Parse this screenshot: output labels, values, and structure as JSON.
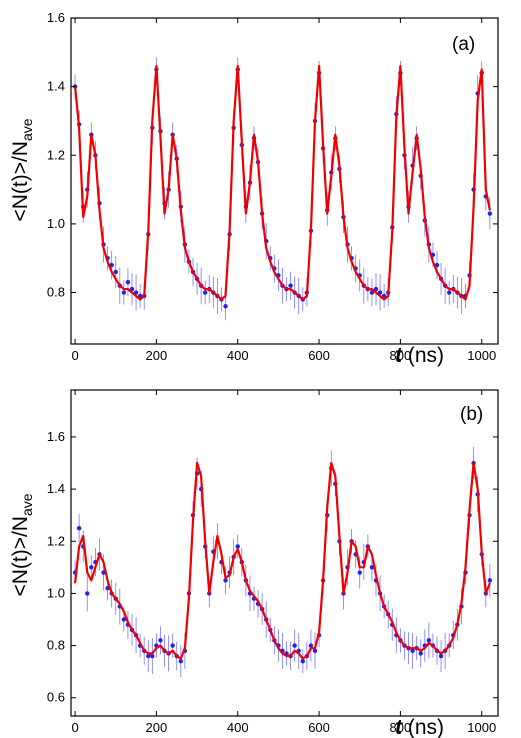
{
  "chart_data": [
    {
      "type": "scatter",
      "panel_label": "(a)",
      "xlabel_var": "t",
      "xlabel_unit": " (ns)",
      "ylabel_main": "<N(t)>/N",
      "ylabel_sub": "ave",
      "xlim": [
        -10,
        1040
      ],
      "ylim": [
        0.65,
        1.6
      ],
      "xticks": [
        0,
        200,
        400,
        600,
        800,
        1000
      ],
      "yticks": [
        0.8,
        1.0,
        1.2,
        1.4,
        1.6
      ],
      "ytick_labels": [
        "0.8",
        "1.0",
        "1.2",
        "1.4",
        "1.6"
      ],
      "series": [
        {
          "kind": "data",
          "color": "#2222ee",
          "x": [
            0,
            10,
            20,
            30,
            40,
            50,
            60,
            70,
            80,
            90,
            100,
            110,
            120,
            130,
            140,
            150,
            160,
            170,
            180,
            190,
            200,
            210,
            220,
            230,
            240,
            250,
            260,
            270,
            280,
            290,
            300,
            310,
            320,
            330,
            340,
            350,
            360,
            370,
            380,
            390,
            400,
            410,
            420,
            430,
            440,
            450,
            460,
            470,
            480,
            490,
            500,
            510,
            520,
            530,
            540,
            550,
            560,
            570,
            580,
            590,
            600,
            610,
            620,
            630,
            640,
            650,
            660,
            670,
            680,
            690,
            700,
            710,
            720,
            730,
            740,
            750,
            760,
            770,
            780,
            790,
            800,
            810,
            820,
            830,
            840,
            850,
            860,
            870,
            880,
            890,
            900,
            910,
            920,
            930,
            940,
            950,
            960,
            970,
            980,
            990,
            1000,
            1010,
            1020
          ],
          "y": [
            1.4,
            1.29,
            1.05,
            1.1,
            1.26,
            1.2,
            1.06,
            0.94,
            0.9,
            0.88,
            0.86,
            0.82,
            0.8,
            0.83,
            0.81,
            0.8,
            0.79,
            0.79,
            0.97,
            1.28,
            1.45,
            1.27,
            1.06,
            1.1,
            1.26,
            1.19,
            1.05,
            0.94,
            0.89,
            0.86,
            0.84,
            0.82,
            0.8,
            0.81,
            0.8,
            0.79,
            0.78,
            0.76,
            0.97,
            1.28,
            1.45,
            1.23,
            1.05,
            1.12,
            1.25,
            1.18,
            1.03,
            0.95,
            0.9,
            0.87,
            0.85,
            0.82,
            0.81,
            0.82,
            0.8,
            0.79,
            0.78,
            0.8,
            0.98,
            1.3,
            1.44,
            1.22,
            1.04,
            1.15,
            1.25,
            1.16,
            1.02,
            0.94,
            0.9,
            0.87,
            0.85,
            0.82,
            0.81,
            0.8,
            0.81,
            0.8,
            0.79,
            0.8,
            0.99,
            1.32,
            1.44,
            1.2,
            1.05,
            1.17,
            1.25,
            1.14,
            1.01,
            0.94,
            0.91,
            0.88,
            0.84,
            0.82,
            0.8,
            0.81,
            0.8,
            0.79,
            0.79,
            0.85,
            1.1,
            1.38,
            1.44,
            1.08,
            1.03
          ]
        },
        {
          "kind": "fit",
          "color": "#ee0000",
          "x": [
            0,
            10,
            20,
            30,
            40,
            50,
            60,
            70,
            80,
            90,
            100,
            110,
            120,
            130,
            140,
            150,
            160,
            170,
            180,
            190,
            200,
            210,
            220,
            230,
            240,
            250,
            260,
            270,
            280,
            290,
            300,
            310,
            320,
            330,
            340,
            350,
            360,
            370,
            380,
            390,
            400,
            410,
            420,
            430,
            440,
            450,
            460,
            470,
            480,
            490,
            500,
            510,
            520,
            530,
            540,
            550,
            560,
            570,
            580,
            590,
            600,
            610,
            620,
            630,
            640,
            650,
            660,
            670,
            680,
            690,
            700,
            710,
            720,
            730,
            740,
            750,
            760,
            770,
            780,
            790,
            800,
            810,
            820,
            830,
            840,
            850,
            860,
            870,
            880,
            890,
            900,
            910,
            920,
            930,
            940,
            950,
            960,
            970,
            980,
            990,
            1000,
            1010,
            1020
          ],
          "y": [
            1.4,
            1.28,
            1.02,
            1.08,
            1.26,
            1.2,
            1.04,
            0.93,
            0.89,
            0.86,
            0.84,
            0.82,
            0.81,
            0.81,
            0.8,
            0.79,
            0.78,
            0.79,
            0.98,
            1.3,
            1.46,
            1.25,
            1.03,
            1.1,
            1.26,
            1.19,
            1.04,
            0.93,
            0.89,
            0.86,
            0.84,
            0.82,
            0.81,
            0.81,
            0.8,
            0.79,
            0.78,
            0.79,
            0.98,
            1.3,
            1.46,
            1.24,
            1.03,
            1.12,
            1.26,
            1.18,
            1.03,
            0.93,
            0.89,
            0.86,
            0.84,
            0.82,
            0.81,
            0.81,
            0.8,
            0.79,
            0.78,
            0.79,
            0.98,
            1.3,
            1.46,
            1.23,
            1.03,
            1.14,
            1.26,
            1.17,
            1.02,
            0.93,
            0.89,
            0.86,
            0.84,
            0.82,
            0.81,
            0.81,
            0.8,
            0.79,
            0.78,
            0.79,
            0.98,
            1.31,
            1.46,
            1.22,
            1.03,
            1.15,
            1.26,
            1.16,
            1.02,
            0.93,
            0.89,
            0.86,
            0.84,
            0.82,
            0.81,
            0.81,
            0.8,
            0.79,
            0.78,
            0.82,
            1.05,
            1.36,
            1.45,
            1.1,
            1.04
          ]
        }
      ]
    },
    {
      "type": "scatter",
      "panel_label": "(b)",
      "xlabel_var": "t",
      "xlabel_unit": " (ns)",
      "ylabel_main": "<N(t)>/N",
      "ylabel_sub": "ave",
      "xlim": [
        -10,
        1040
      ],
      "ylim": [
        0.53,
        1.78
      ],
      "xticks": [
        0,
        200,
        400,
        600,
        800,
        1000
      ],
      "yticks": [
        0.6,
        0.8,
        1.0,
        1.2,
        1.4,
        1.6
      ],
      "ytick_labels": [
        "0.6",
        "0.8",
        "1.0",
        "1.2",
        "1.4",
        "1.6"
      ],
      "series": [
        {
          "kind": "data",
          "color": "#2222ee",
          "x": [
            0,
            10,
            20,
            30,
            40,
            50,
            60,
            70,
            80,
            90,
            100,
            110,
            120,
            130,
            140,
            150,
            160,
            170,
            180,
            190,
            200,
            210,
            220,
            230,
            240,
            250,
            260,
            270,
            280,
            290,
            300,
            310,
            320,
            330,
            340,
            350,
            360,
            370,
            380,
            390,
            400,
            410,
            420,
            430,
            440,
            450,
            460,
            470,
            480,
            490,
            500,
            510,
            520,
            530,
            540,
            550,
            560,
            570,
            580,
            590,
            600,
            610,
            620,
            630,
            640,
            650,
            660,
            670,
            680,
            690,
            700,
            710,
            720,
            730,
            740,
            750,
            760,
            770,
            780,
            790,
            800,
            810,
            820,
            830,
            840,
            850,
            860,
            870,
            880,
            890,
            900,
            910,
            920,
            930,
            940,
            950,
            960,
            970,
            980,
            990,
            1000,
            1010,
            1020
          ],
          "y": [
            1.08,
            1.25,
            1.18,
            1.0,
            1.1,
            1.12,
            1.15,
            1.08,
            1.02,
            1.0,
            0.98,
            0.95,
            0.9,
            0.88,
            0.86,
            0.84,
            0.8,
            0.78,
            0.76,
            0.76,
            0.8,
            0.82,
            0.78,
            0.77,
            0.8,
            0.76,
            0.74,
            0.78,
            1.0,
            1.3,
            1.46,
            1.4,
            1.18,
            1.0,
            1.16,
            1.2,
            1.12,
            1.05,
            1.08,
            1.14,
            1.18,
            1.12,
            1.05,
            1.0,
            0.98,
            0.96,
            0.94,
            0.9,
            0.86,
            0.82,
            0.8,
            0.78,
            0.77,
            0.76,
            0.8,
            0.78,
            0.74,
            0.76,
            0.8,
            0.78,
            0.84,
            1.05,
            1.3,
            1.48,
            1.42,
            1.2,
            1.0,
            1.1,
            1.2,
            1.15,
            1.08,
            1.12,
            1.18,
            1.1,
            1.05,
            1.0,
            0.95,
            0.92,
            0.88,
            0.84,
            0.82,
            0.8,
            0.79,
            0.78,
            0.79,
            0.77,
            0.8,
            0.82,
            0.8,
            0.78,
            0.76,
            0.78,
            0.8,
            0.84,
            0.88,
            0.95,
            1.08,
            1.3,
            1.5,
            1.38,
            1.15,
            1.0,
            1.05
          ]
        },
        {
          "kind": "fit",
          "color": "#ee0000",
          "x": [
            0,
            10,
            20,
            30,
            40,
            50,
            60,
            70,
            80,
            90,
            100,
            110,
            120,
            130,
            140,
            150,
            160,
            170,
            180,
            190,
            200,
            210,
            220,
            230,
            240,
            250,
            260,
            270,
            280,
            290,
            300,
            310,
            320,
            330,
            340,
            350,
            360,
            370,
            380,
            390,
            400,
            410,
            420,
            430,
            440,
            450,
            460,
            470,
            480,
            490,
            500,
            510,
            520,
            530,
            540,
            550,
            560,
            570,
            580,
            590,
            600,
            610,
            620,
            630,
            640,
            650,
            660,
            670,
            680,
            690,
            700,
            710,
            720,
            730,
            740,
            750,
            760,
            770,
            780,
            790,
            800,
            810,
            820,
            830,
            840,
            850,
            860,
            870,
            880,
            890,
            900,
            910,
            920,
            930,
            940,
            950,
            960,
            970,
            980,
            990,
            1000,
            1010,
            1020
          ],
          "y": [
            1.04,
            1.18,
            1.22,
            1.08,
            1.05,
            1.1,
            1.15,
            1.12,
            1.05,
            1.0,
            0.98,
            0.96,
            0.93,
            0.89,
            0.86,
            0.84,
            0.81,
            0.78,
            0.77,
            0.77,
            0.79,
            0.8,
            0.78,
            0.77,
            0.78,
            0.76,
            0.75,
            0.79,
            0.98,
            1.28,
            1.5,
            1.45,
            1.2,
            1.0,
            1.12,
            1.22,
            1.15,
            1.06,
            1.07,
            1.14,
            1.17,
            1.12,
            1.05,
            1.01,
            0.99,
            0.97,
            0.94,
            0.9,
            0.86,
            0.82,
            0.79,
            0.77,
            0.76,
            0.76,
            0.78,
            0.77,
            0.75,
            0.76,
            0.79,
            0.79,
            0.85,
            1.05,
            1.33,
            1.5,
            1.45,
            1.22,
            1.0,
            1.08,
            1.2,
            1.18,
            1.1,
            1.1,
            1.18,
            1.15,
            1.07,
            1.0,
            0.95,
            0.92,
            0.89,
            0.85,
            0.82,
            0.8,
            0.79,
            0.79,
            0.79,
            0.78,
            0.79,
            0.81,
            0.8,
            0.78,
            0.77,
            0.78,
            0.8,
            0.83,
            0.88,
            0.96,
            1.1,
            1.32,
            1.5,
            1.4,
            1.16,
            1.0,
            1.04
          ]
        }
      ]
    }
  ]
}
